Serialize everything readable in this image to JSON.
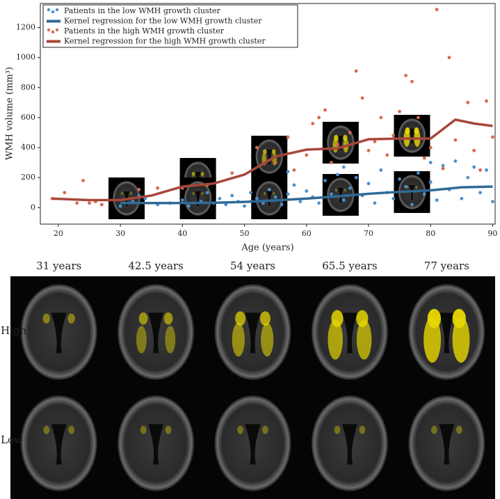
{
  "chart_data": {
    "type": "scatter",
    "xlabel": "Age (years)",
    "ylabel": "WMH volume (mm³)",
    "xlim": [
      17.1,
      90.4
    ],
    "ylim": [
      -110,
      1360
    ],
    "xticks": [
      20,
      30,
      40,
      50,
      60,
      70,
      80,
      90
    ],
    "yticks": [
      0,
      200,
      400,
      600,
      800,
      1000,
      1200
    ],
    "legend": "upper left",
    "series": [
      {
        "name": "Patients in the low WMH growth cluster",
        "kind": "points",
        "color": "#4a90d0",
        "x": [
          30,
          32,
          34,
          36,
          38,
          40,
          41,
          43,
          45,
          46,
          47,
          48,
          49,
          50,
          51,
          52,
          53,
          54,
          55,
          56,
          57,
          58,
          59,
          60,
          61,
          62,
          63,
          64,
          65,
          66,
          67,
          68,
          69,
          70,
          71,
          72,
          73,
          74,
          75,
          76,
          77,
          78,
          79,
          80,
          81,
          82,
          83,
          84,
          85,
          86,
          87,
          88,
          89,
          90,
          27,
          33,
          44,
          57,
          66,
          80
        ],
        "values": [
          10,
          40,
          60,
          20,
          30,
          50,
          10,
          40,
          30,
          60,
          20,
          80,
          40,
          10,
          100,
          60,
          30,
          120,
          70,
          20,
          90,
          150,
          40,
          110,
          70,
          30,
          180,
          90,
          220,
          50,
          130,
          200,
          80,
          160,
          30,
          250,
          100,
          60,
          190,
          140,
          20,
          230,
          90,
          170,
          50,
          280,
          120,
          310,
          60,
          200,
          270,
          100,
          250,
          40,
          20,
          80,
          100,
          240,
          270,
          300
        ]
      },
      {
        "name": "Kernel regression for the low WMH growth cluster",
        "kind": "line",
        "color": "#2e6a96",
        "x": [
          30,
          35,
          40,
          45,
          50,
          55,
          60,
          65,
          70,
          75,
          80,
          85,
          90
        ],
        "values": [
          30,
          30,
          30,
          32,
          38,
          48,
          60,
          75,
          92,
          105,
          115,
          135,
          140
        ]
      },
      {
        "name": "Patients in the high WMH growth cluster",
        "kind": "points",
        "color": "#d9694a",
        "x": [
          19,
          21,
          23,
          24,
          25,
          26,
          27,
          33,
          36,
          40,
          44,
          48,
          52,
          55,
          57,
          58,
          60,
          61,
          62,
          63,
          64,
          65,
          67,
          68,
          69,
          70,
          71,
          72,
          73,
          74,
          75,
          76,
          77,
          78,
          79,
          80,
          81,
          82,
          83,
          84,
          86,
          87,
          88,
          89,
          90
        ],
        "values": [
          60,
          100,
          30,
          180,
          30,
          40,
          20,
          120,
          130,
          130,
          150,
          230,
          400,
          300,
          470,
          250,
          350,
          560,
          600,
          650,
          300,
          420,
          500,
          910,
          730,
          380,
          440,
          600,
          350,
          480,
          640,
          880,
          840,
          600,
          330,
          400,
          1320,
          260,
          1000,
          450,
          700,
          380,
          250,
          710,
          470
        ]
      },
      {
        "name": "Kernel regression for the high WMH growth cluster",
        "kind": "line",
        "color": "#a8463a",
        "x": [
          19,
          25,
          30,
          35,
          40,
          45,
          50,
          55,
          60,
          65,
          70,
          75,
          80,
          84,
          87,
          90
        ],
        "values": [
          60,
          50,
          50,
          80,
          140,
          160,
          220,
          340,
          386,
          395,
          455,
          460,
          460,
          586,
          560,
          544
        ]
      }
    ]
  },
  "panel": {
    "columns": [
      "31 years",
      "42.5 years",
      "54 years",
      "65.5 years",
      "77 years"
    ],
    "rows": [
      "High",
      "Low"
    ]
  }
}
